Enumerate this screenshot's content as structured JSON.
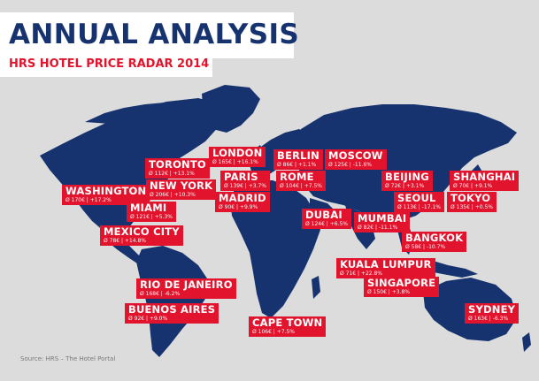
{
  "header": {
    "title": "ANNUAL ANALYSIS",
    "subtitle": "HRS HOTEL PRICE RADAR 2014"
  },
  "colors": {
    "background": "#dcdcdc",
    "land": "#16336f",
    "label": "#e2142d",
    "title": "#16336f",
    "subtitle": "#e2142d"
  },
  "cities": [
    {
      "name": "LONDON",
      "detail": "Ø 165€ | +16.1%"
    },
    {
      "name": "BERLIN",
      "detail": "Ø 86€ | +1.1%"
    },
    {
      "name": "MOSCOW",
      "detail": "Ø 125€ | -11.6%"
    },
    {
      "name": "TORONTO",
      "detail": "Ø 112€ | +13.1%"
    },
    {
      "name": "PARIS",
      "detail": "Ø 139€ | +3.7%"
    },
    {
      "name": "ROME",
      "detail": "Ø 104€ | +7.5%"
    },
    {
      "name": "BEIJING",
      "detail": "Ø 72€ | +3.1%"
    },
    {
      "name": "SHANGHAI",
      "detail": "Ø 70€ | +9.1%"
    },
    {
      "name": "NEW YORK",
      "detail": "Ø 206€ | +10.3%"
    },
    {
      "name": "WASHINGTON",
      "detail": "Ø 170€ | +17.2%"
    },
    {
      "name": "MADRID",
      "detail": "Ø 90€ | +9.9%"
    },
    {
      "name": "SEOUL",
      "detail": "Ø 113€ | -17.1%"
    },
    {
      "name": "TOKYO",
      "detail": "Ø 135€ | +0.5%"
    },
    {
      "name": "MIAMI",
      "detail": "Ø 121€ | +5.3%"
    },
    {
      "name": "DUBAI",
      "detail": "Ø 124€ | +6.5%"
    },
    {
      "name": "MUMBAI",
      "detail": "Ø 82€ | -11.1%"
    },
    {
      "name": "MEXICO CITY",
      "detail": "Ø 78€ | +14.8%"
    },
    {
      "name": "BANGKOK",
      "detail": "Ø 58€ | -10.7%"
    },
    {
      "name": "KUALA LUMPUR",
      "detail": "Ø 71€ | +22.8%"
    },
    {
      "name": "SINGAPORE",
      "detail": "Ø 150€ | +3.8%"
    },
    {
      "name": "RIO DE JANEIRO",
      "detail": "Ø 168€ | -6.2%"
    },
    {
      "name": "BUENOS AIRES",
      "detail": "Ø 92€ | +9.0%"
    },
    {
      "name": "SYDNEY",
      "detail": "Ø 163€ | -6.3%"
    },
    {
      "name": "CAPE TOWN",
      "detail": "Ø 106€ | +7.5%"
    }
  ],
  "footer": {
    "source": "Source: HRS – The Hotel Portal"
  }
}
